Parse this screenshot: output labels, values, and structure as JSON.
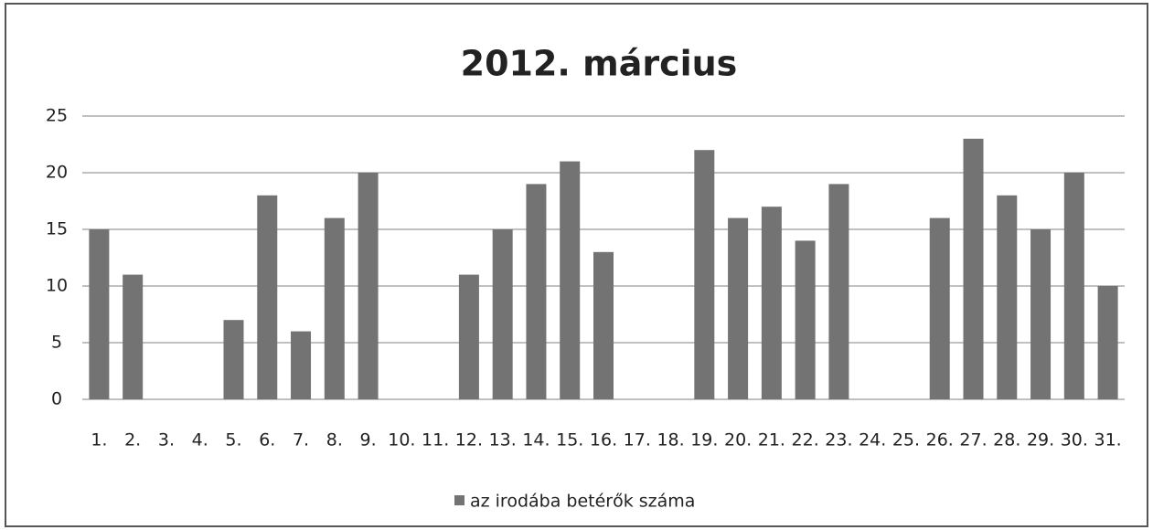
{
  "chart_data": {
    "type": "bar",
    "title": "2012. március",
    "categories": [
      "1.",
      "2.",
      "3.",
      "4.",
      "5.",
      "6.",
      "7.",
      "8.",
      "9.",
      "10.",
      "11.",
      "12.",
      "13.",
      "14.",
      "15.",
      "16.",
      "17.",
      "18.",
      "19.",
      "20.",
      "21.",
      "22.",
      "23.",
      "24.",
      "25.",
      "26.",
      "27.",
      "28.",
      "29.",
      "30.",
      "31."
    ],
    "series": [
      {
        "name": "az irodába betérők száma",
        "color": "#737373",
        "values": [
          15,
          11,
          0,
          0,
          7,
          18,
          6,
          16,
          20,
          0,
          0,
          11,
          15,
          19,
          21,
          13,
          0,
          0,
          22,
          16,
          17,
          14,
          19,
          0,
          0,
          16,
          23,
          18,
          15,
          20,
          10
        ]
      }
    ],
    "ylim": [
      0,
      25
    ],
    "yticks": [
      0,
      5,
      10,
      15,
      20,
      25
    ],
    "grid": true,
    "legend": "bottom"
  }
}
